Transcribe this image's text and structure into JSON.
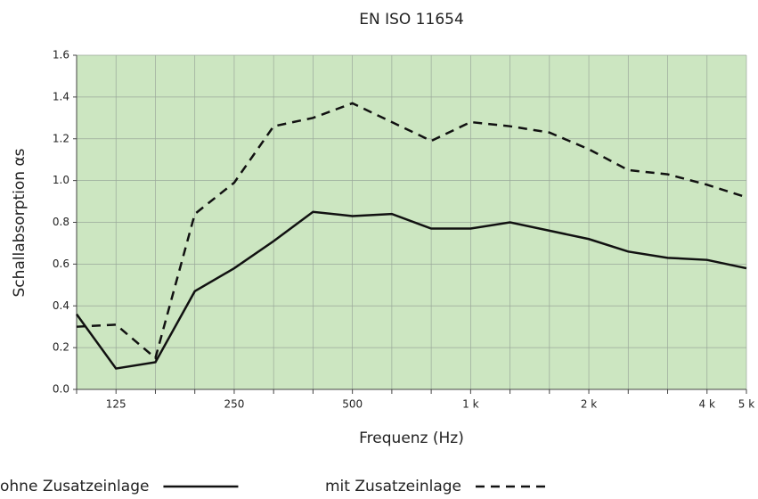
{
  "chart_data": {
    "type": "line",
    "title": "EN ISO 11654",
    "x_label": "Frequenz (Hz)",
    "y_label": "Schallabsorption αs",
    "categories": [
      null,
      "125",
      null,
      null,
      "250",
      null,
      null,
      "500",
      null,
      null,
      "1 k",
      null,
      null,
      "2 k",
      null,
      null,
      "4 k",
      "5 k"
    ],
    "series": [
      {
        "name": "ohne Zusatzeinlage",
        "color": "#111111",
        "dash": false,
        "values": [
          0.36,
          0.1,
          0.13,
          0.47,
          0.58,
          0.71,
          0.85,
          0.83,
          0.84,
          0.77,
          0.77,
          0.8,
          0.76,
          0.72,
          0.66,
          0.63,
          0.62,
          0.58
        ]
      },
      {
        "name": "mit Zusatzeinlage",
        "color": "#111111",
        "dash": true,
        "values": [
          0.3,
          0.31,
          0.15,
          0.84,
          0.99,
          1.26,
          1.3,
          1.37,
          1.28,
          1.19,
          1.28,
          1.26,
          1.23,
          1.15,
          1.05,
          1.03,
          0.98,
          0.92
        ]
      }
    ],
    "ylim": [
      0,
      1.6
    ],
    "yticks": [
      {
        "value": 0,
        "label": "0.0"
      },
      0.2,
      0.4,
      0.6,
      0.8,
      {
        "value": 1,
        "label": "1.0"
      },
      1.2,
      1.4,
      1.6
    ],
    "grid": true,
    "background": "#cce6c1"
  }
}
